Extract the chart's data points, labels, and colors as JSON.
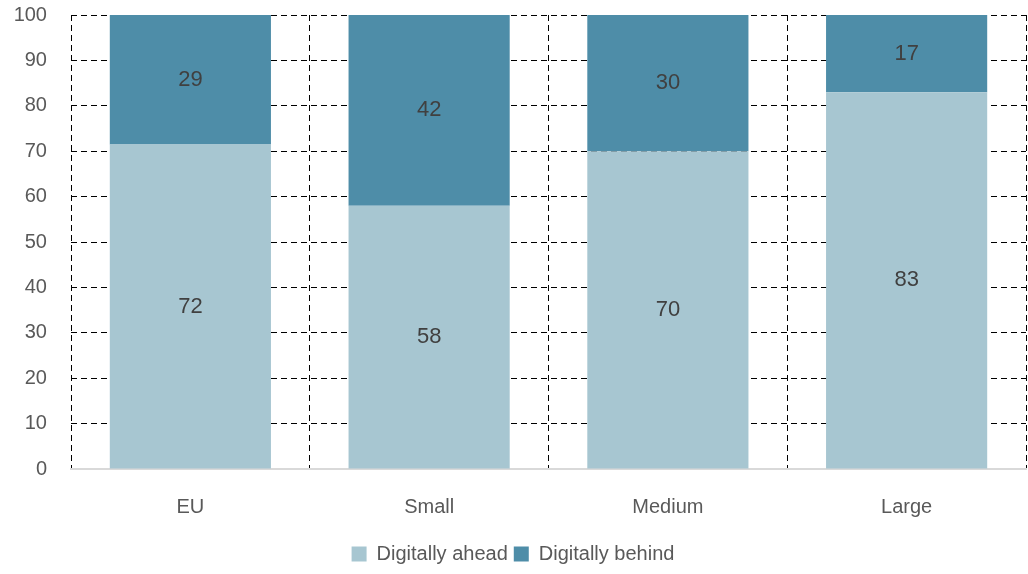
{
  "chart_data": {
    "type": "bar",
    "categories": [
      "EU",
      "Small",
      "Medium",
      "Large"
    ],
    "stacked": true,
    "series": [
      {
        "name": "Digitally ahead",
        "color": "#a7c6d1",
        "values": [
          71.5,
          58,
          70,
          83
        ],
        "value_labels": [
          "72",
          "58",
          "70",
          "83"
        ]
      },
      {
        "name": "Digitally behind",
        "color": "#4e8da8",
        "values": [
          28.5,
          42,
          30,
          17
        ],
        "value_labels": [
          "29",
          "42",
          "30",
          "17"
        ]
      }
    ],
    "ylim": [
      0,
      100
    ],
    "yticks": [
      0,
      10,
      20,
      30,
      40,
      50,
      60,
      70,
      80,
      90,
      100
    ],
    "grid": true,
    "legend": "bottom"
  }
}
